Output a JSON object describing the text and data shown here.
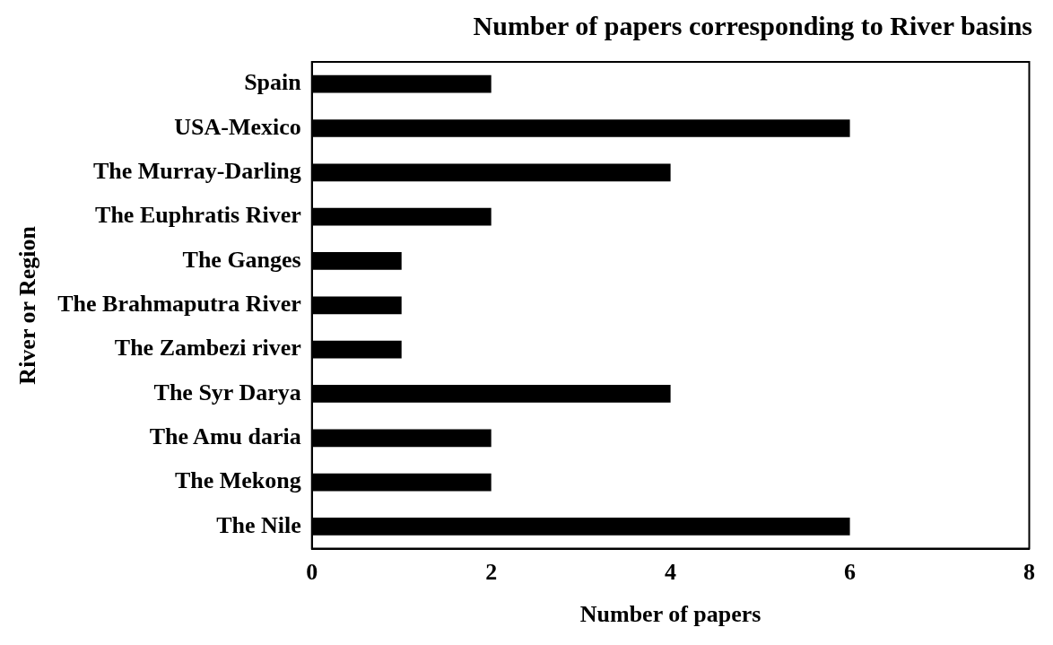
{
  "chart_data": {
    "type": "bar",
    "orientation": "horizontal",
    "title": "Number of papers corresponding to River basins",
    "xlabel": "Number of papers",
    "ylabel": "River or Region",
    "categories": [
      "Spain",
      "USA-Mexico",
      "The Murray-Darling",
      "The Euphratis River",
      "The Ganges",
      "The Brahmaputra River",
      "The Zambezi river",
      "The Syr Darya",
      "The Amu daria",
      "The Mekong",
      "The Nile"
    ],
    "values": [
      2,
      6,
      4,
      2,
      1,
      1,
      1,
      4,
      2,
      2,
      6
    ],
    "color": "#000000",
    "xlim": [
      0,
      8
    ],
    "xticks": [
      0,
      2,
      4,
      6,
      8
    ],
    "grid": false,
    "legend": false
  }
}
